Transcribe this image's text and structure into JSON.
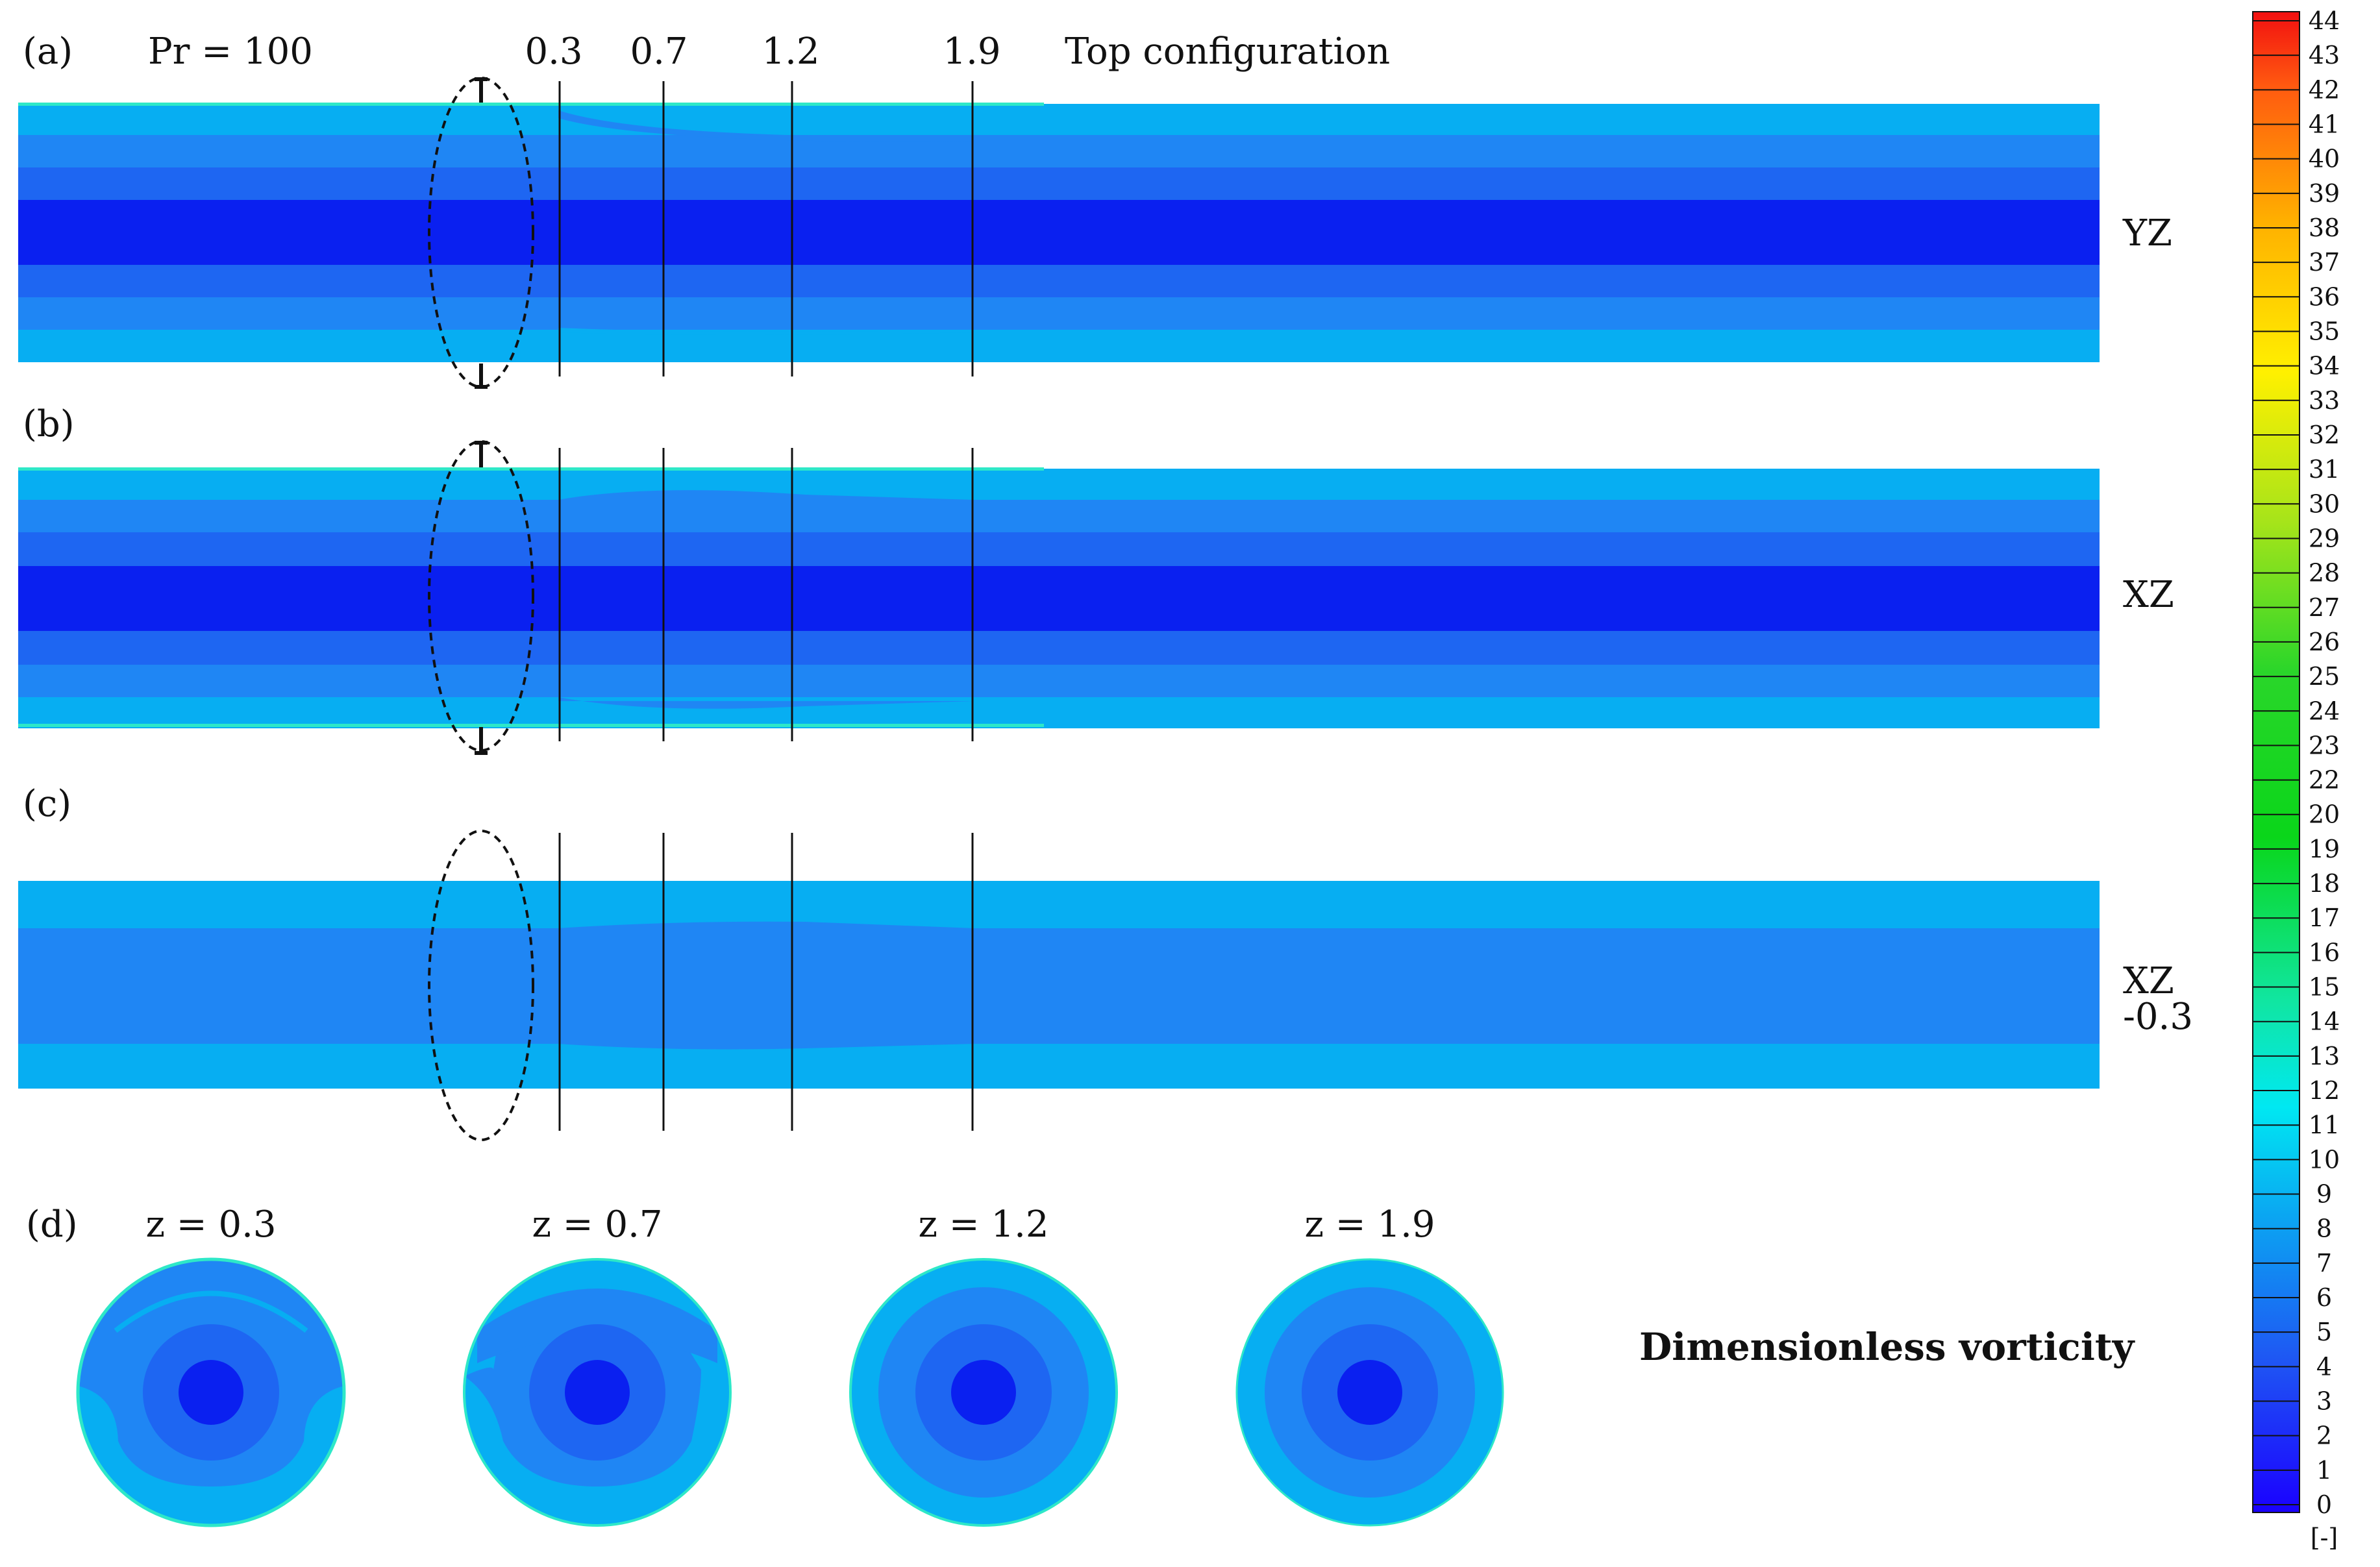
{
  "figure": {
    "header": {
      "panel_a": "(a)",
      "prandtl": "Pr = 100",
      "configuration": "Top configuration"
    },
    "panel_labels": {
      "b": "(b)",
      "c": "(c)",
      "d": "(d)"
    },
    "slice_positions": [
      "0.3",
      "0.7",
      "1.2",
      "1.9"
    ],
    "plane_labels": {
      "a": "YZ",
      "b": "XZ",
      "c_line1": "XZ",
      "c_line2": "-0.3"
    },
    "cross_sections": [
      {
        "label": "z = 0.3"
      },
      {
        "label": "z = 0.7"
      },
      {
        "label": "z = 1.2"
      },
      {
        "label": "z = 1.9"
      }
    ],
    "colorbar_title": "Dimensionless vorticity",
    "colorbar_unit": "[-]",
    "colorbar": {
      "min": 0,
      "max": 44,
      "ticks": [
        "0",
        "1",
        "2",
        "3",
        "4",
        "5",
        "6",
        "7",
        "8",
        "9",
        "10",
        "11",
        "12",
        "13",
        "14",
        "15",
        "16",
        "17",
        "18",
        "19",
        "20",
        "22",
        "23",
        "24",
        "25",
        "26",
        "27",
        "28",
        "29",
        "30",
        "31",
        "32",
        "33",
        "34",
        "35",
        "36",
        "37",
        "38",
        "39",
        "40",
        "41",
        "42",
        "43",
        "44"
      ]
    },
    "colors": {
      "level_1": "#0a20f0",
      "level_2": "#1a4ff2",
      "level_3": "#1e66f2",
      "level_4": "#1f86f4",
      "level_5": "#07aef2",
      "level_hi": "#2ee8c8"
    }
  }
}
